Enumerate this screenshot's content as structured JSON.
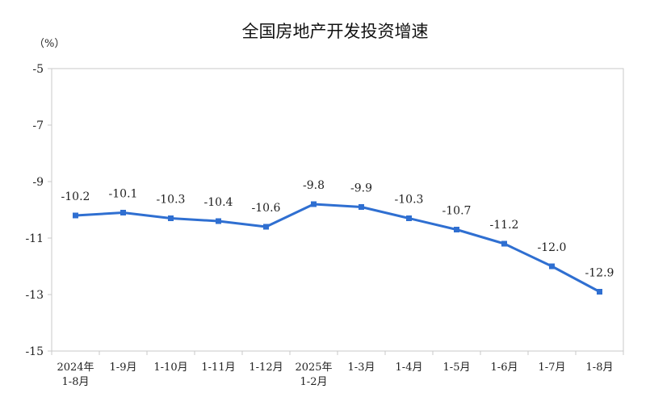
{
  "chart_data": {
    "type": "line",
    "title": "全国房地产开发投资增速",
    "unit_label": "（%）",
    "categories": [
      [
        "2024年",
        "1-8月"
      ],
      [
        "1-9月"
      ],
      [
        "1-10月"
      ],
      [
        "1-11月"
      ],
      [
        "1-12月"
      ],
      [
        "2025年",
        "1-2月"
      ],
      [
        "1-3月"
      ],
      [
        "1-4月"
      ],
      [
        "1-5月"
      ],
      [
        "1-6月"
      ],
      [
        "1-7月"
      ],
      [
        "1-8月"
      ]
    ],
    "series": [
      {
        "values": [
          -10.2,
          -10.1,
          -10.3,
          -10.4,
          -10.6,
          -9.8,
          -9.9,
          -10.3,
          -10.7,
          -11.2,
          -12.0,
          -12.9
        ],
        "labels": [
          "-10.2",
          "-10.1",
          "-10.3",
          "-10.4",
          "-10.6",
          "-9.8",
          "-9.9",
          "-10.3",
          "-10.7",
          "-11.2",
          "-12.0",
          "-12.9"
        ],
        "color": "#2f6fd1"
      }
    ],
    "ylim": [
      -15,
      -5
    ],
    "yticks": [
      -5,
      -7,
      -9,
      -11,
      -13,
      -15
    ],
    "grid": false,
    "legend": "none"
  }
}
